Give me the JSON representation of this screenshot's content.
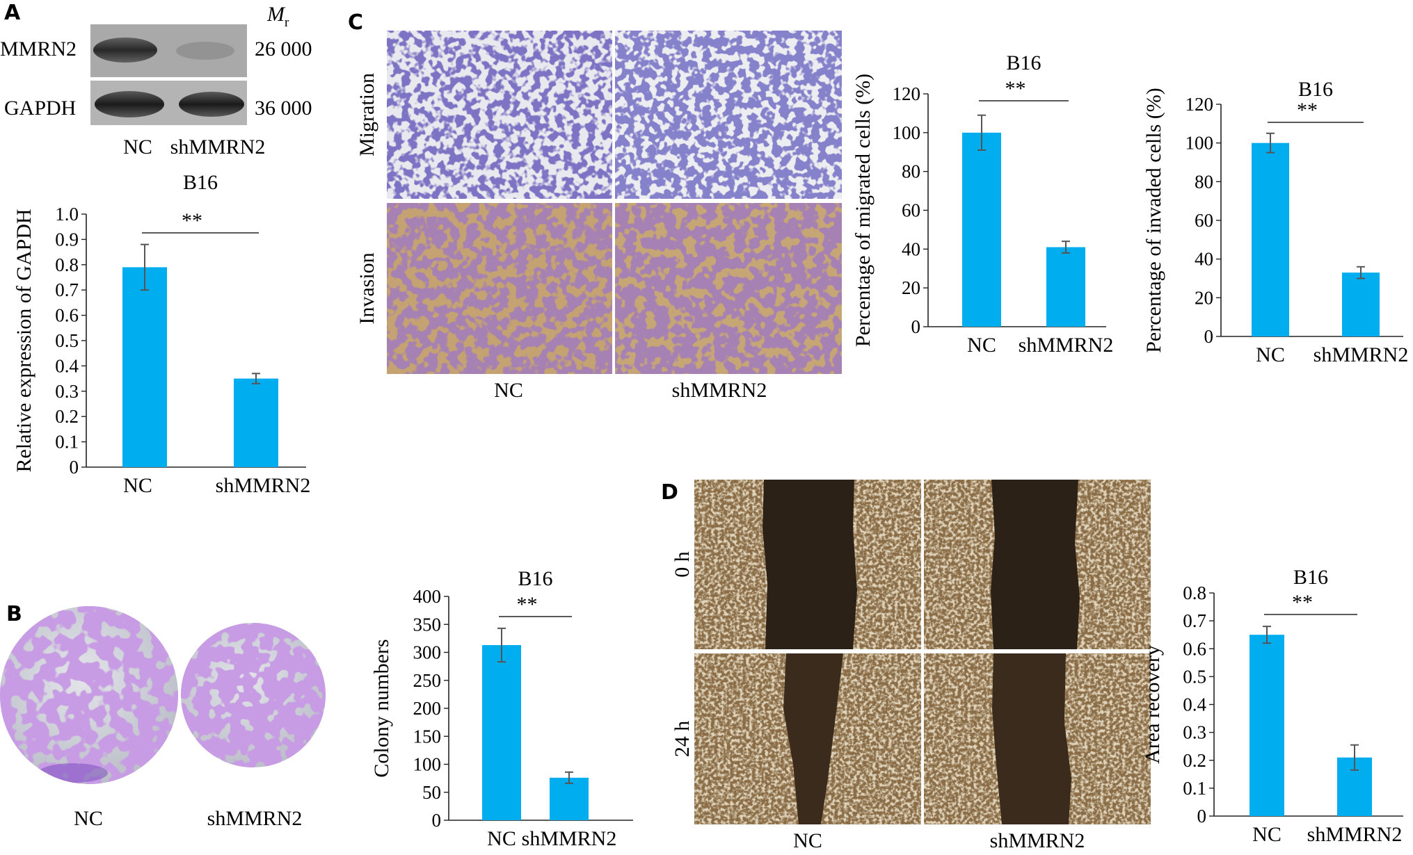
{
  "panels": {
    "A": {
      "letter": "A",
      "blot": {
        "mr_label": "M",
        "mr_sub": "r",
        "rows": [
          {
            "protein": "MMRN2",
            "mr": "26 000"
          },
          {
            "protein": "GAPDH",
            "mr": "36 000"
          }
        ],
        "lanes": [
          "NC",
          "shMMRN2"
        ]
      }
    },
    "B": {
      "letter": "B",
      "plates": [
        "NC",
        "shMMRN2"
      ]
    },
    "C": {
      "letter": "C",
      "row_labels": [
        "Migration",
        "Invasion"
      ],
      "col_labels": [
        "NC",
        "shMMRN2"
      ]
    },
    "D": {
      "letter": "D",
      "row_labels": [
        "0 h",
        "24 h"
      ],
      "col_labels": [
        "NC",
        "shMMRN2"
      ]
    }
  },
  "colors": {
    "bar": "#00AEEF",
    "error": "#555555",
    "axis": "#222222"
  },
  "chart_data": [
    {
      "id": "A",
      "type": "bar",
      "title": "B16",
      "categories": [
        "NC",
        "shMMRN2"
      ],
      "values": [
        0.79,
        0.35
      ],
      "errors": [
        0.09,
        0.02
      ],
      "ylabel": "Relative expression of GAPDH",
      "ylim": [
        0,
        1.0
      ],
      "ticks": [
        "0",
        "0.1",
        "0.2",
        "0.3",
        "0.4",
        "0.5",
        "0.6",
        "0.7",
        "0.8",
        "0.9",
        "1.0"
      ],
      "significance": "**"
    },
    {
      "id": "B",
      "type": "bar",
      "title": "B16",
      "categories": [
        "NC",
        "shMMRN2"
      ],
      "values": [
        313,
        76
      ],
      "errors": [
        30,
        10
      ],
      "ylabel": "Colony numbers",
      "ylim": [
        0,
        400
      ],
      "ticks": [
        "0",
        "50",
        "100",
        "150",
        "200",
        "250",
        "300",
        "350",
        "400"
      ],
      "significance": "**"
    },
    {
      "id": "C1",
      "type": "bar",
      "title": "B16",
      "categories": [
        "NC",
        "shMMRN2"
      ],
      "values": [
        100,
        41
      ],
      "errors": [
        9,
        3
      ],
      "ylabel": "Percentage of migrated cells (%)",
      "ylim": [
        0,
        120
      ],
      "ticks": [
        "0",
        "20",
        "40",
        "60",
        "80",
        "100",
        "120"
      ],
      "significance": "**"
    },
    {
      "id": "C2",
      "type": "bar",
      "title": "B16",
      "categories": [
        "NC",
        "shMMRN2"
      ],
      "values": [
        100,
        33
      ],
      "errors": [
        5,
        3
      ],
      "ylabel": "Percentage of invaded cells (%)",
      "ylim": [
        0,
        120
      ],
      "ticks": [
        "0",
        "20",
        "40",
        "60",
        "80",
        "100",
        "120"
      ],
      "significance": "**"
    },
    {
      "id": "D",
      "type": "bar",
      "title": "B16",
      "categories": [
        "NC",
        "shMMRN2"
      ],
      "values": [
        0.65,
        0.21
      ],
      "errors": [
        0.03,
        0.045
      ],
      "ylabel": "Area recovery",
      "ylim": [
        0,
        0.8
      ],
      "ticks": [
        "0",
        "0.1",
        "0.2",
        "0.3",
        "0.4",
        "0.5",
        "0.6",
        "0.7",
        "0.8"
      ],
      "significance": "**"
    }
  ]
}
